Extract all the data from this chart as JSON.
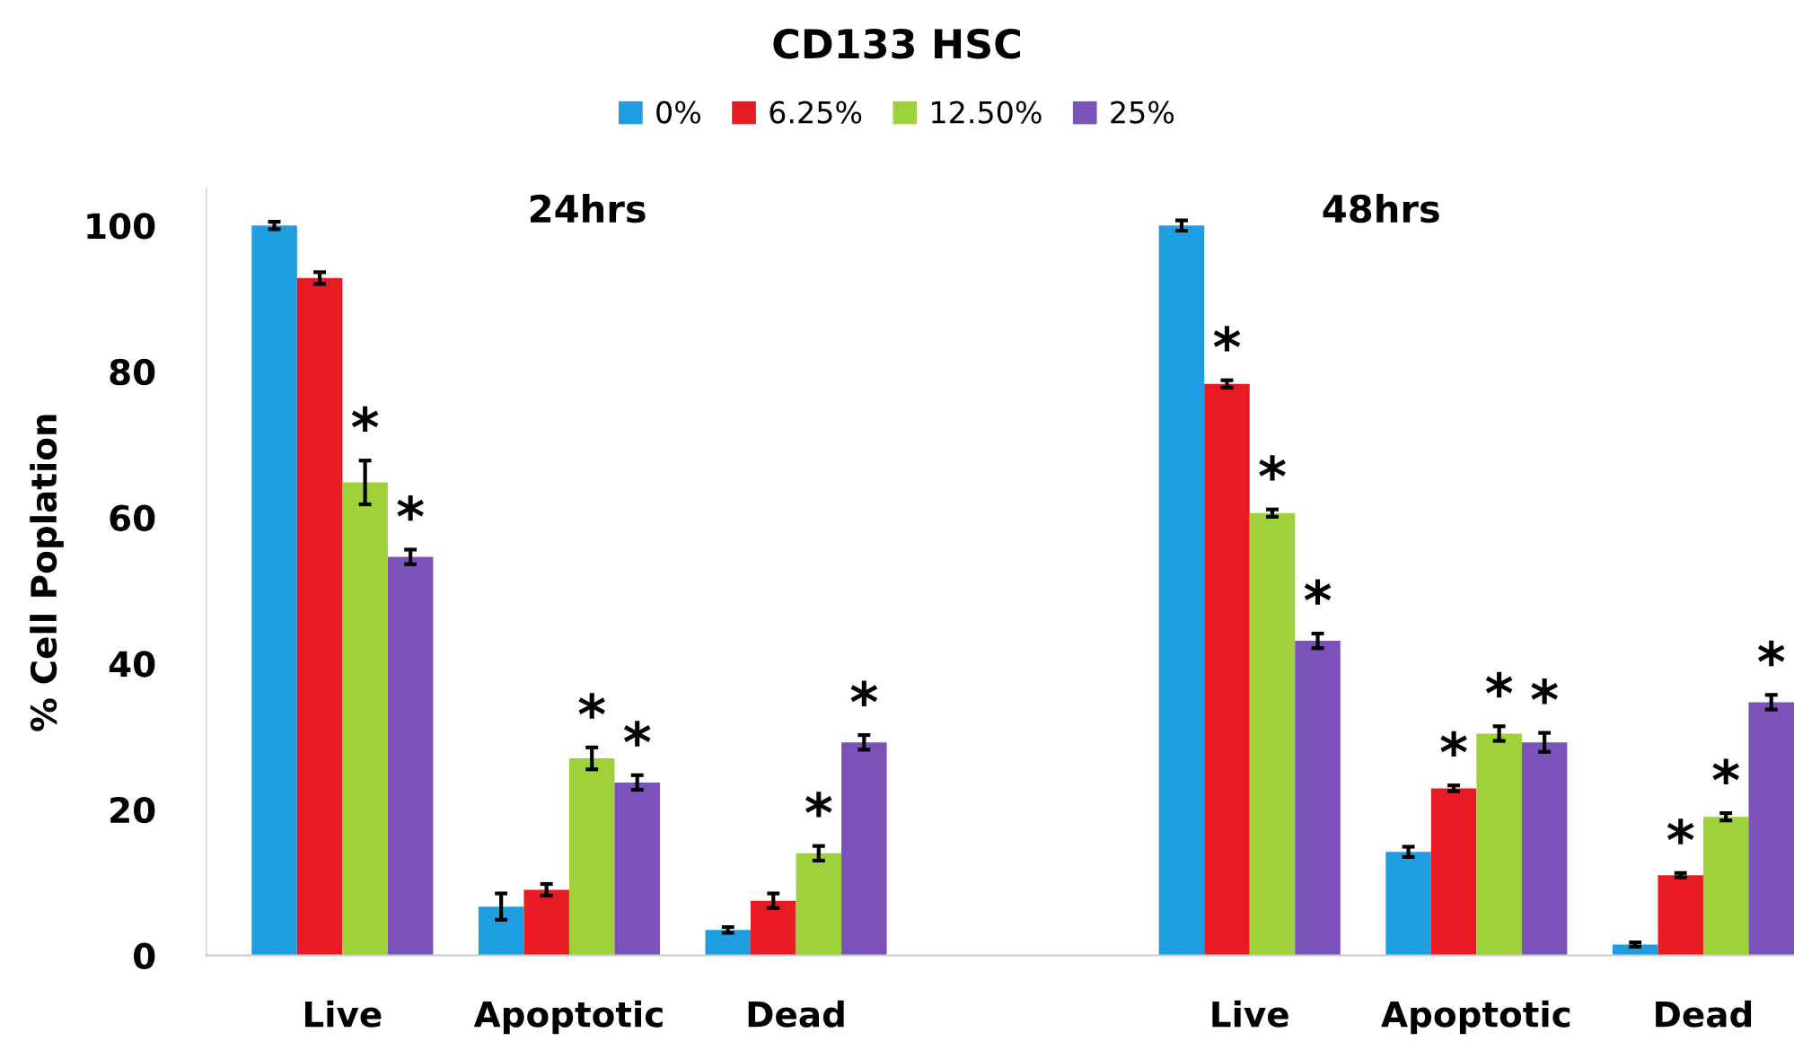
{
  "chart_data": {
    "type": "bar",
    "title": "CD133 HSC",
    "ylabel": "% Cell Poplation",
    "categories": [
      "Live",
      "Apoptotic",
      "Dead",
      null,
      "Live",
      "Apoptotic",
      "Dead"
    ],
    "series": [
      {
        "name": "0%",
        "color": "#1e9ee0",
        "values": [
          100,
          6.7,
          3.5,
          null,
          100,
          14.2,
          1.5
        ],
        "errors": [
          0.5,
          1.8,
          0.4,
          null,
          0.7,
          0.7,
          0.3
        ],
        "value_labels": [
          null,
          null,
          null,
          null,
          null,
          null,
          null
        ]
      },
      {
        "name": "6.25%",
        "color": "#e81a24",
        "values": [
          92.8,
          9,
          7.5,
          null,
          78.3,
          22.9,
          11
        ],
        "errors": [
          0.8,
          0.8,
          1,
          null,
          0.5,
          0.4,
          0.3
        ],
        "value_labels": [
          null,
          null,
          null,
          null,
          "*",
          "*",
          "*"
        ]
      },
      {
        "name": "12.50%",
        "color": "#9fd13a",
        "values": [
          64.8,
          27,
          14,
          null,
          60.6,
          30.4,
          19
        ],
        "errors": [
          3,
          1.5,
          1,
          null,
          0.5,
          1,
          0.5
        ],
        "value_labels": [
          "*",
          "*",
          "*",
          null,
          "*",
          "*",
          "*"
        ]
      },
      {
        "name": "25%",
        "color": "#7a52b8",
        "values": [
          54.6,
          23.7,
          29.2,
          null,
          43.1,
          29.2,
          34.7
        ],
        "errors": [
          1,
          1,
          1,
          null,
          1,
          1.3,
          1
        ],
        "value_labels": [
          "*",
          "*",
          "*",
          null,
          "*",
          "*",
          "*"
        ]
      }
    ],
    "annotations": [
      "24hrs",
      "48hrs"
    ],
    "ylim": [
      0,
      105
    ],
    "yticks": [
      0,
      20,
      40,
      60,
      80,
      100
    ],
    "grid": false,
    "legend": "top"
  }
}
